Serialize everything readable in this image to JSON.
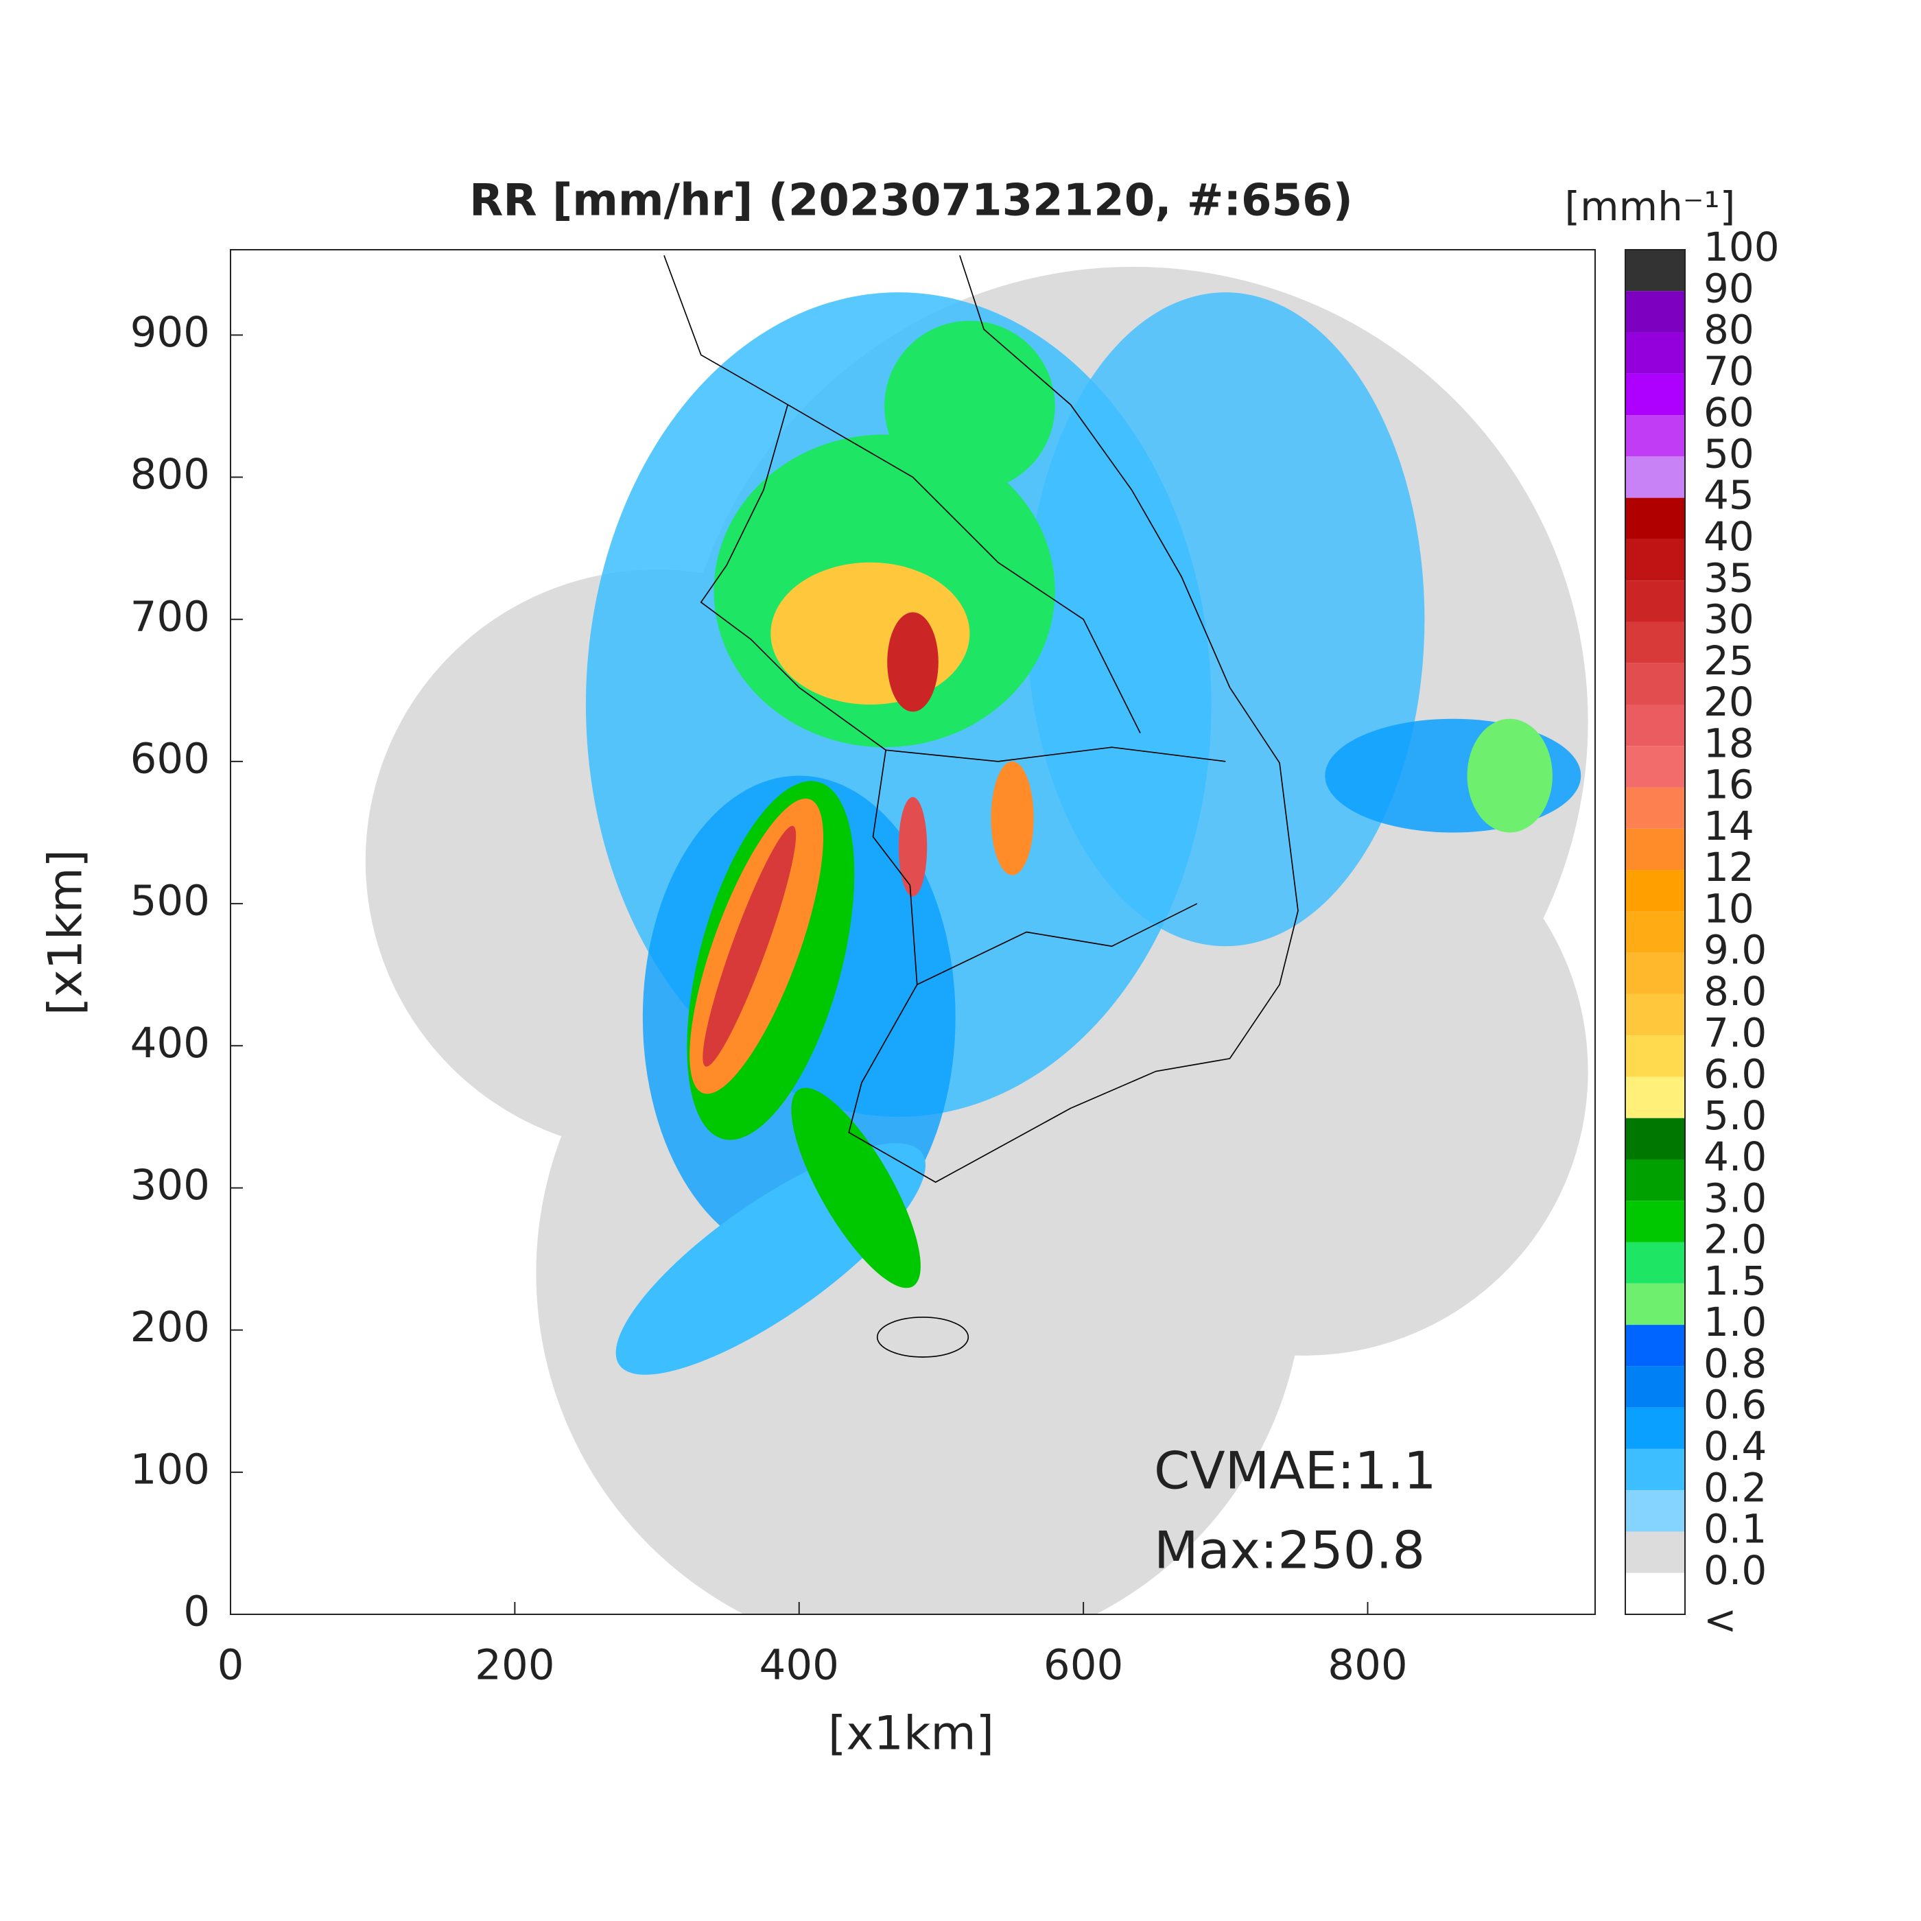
{
  "map": {
    "title": "RR [mm/hr] (202307132120, #:656)",
    "xlabel": "[x1km]",
    "ylabel": "[x1km]",
    "xlim": [
      0,
      960
    ],
    "ylim": [
      0,
      960
    ],
    "xticks": [
      0,
      200,
      400,
      600,
      800
    ],
    "yticks": [
      0,
      100,
      200,
      300,
      400,
      500,
      600,
      700,
      800,
      900
    ],
    "annotations": [
      "CVMAE:1.1",
      "Max:250.8"
    ],
    "colorbar": {
      "label": "[mmh⁻¹]",
      "ticks": [
        100,
        90,
        80,
        70,
        60,
        50,
        45,
        40,
        35,
        30,
        25,
        20,
        18,
        16,
        14,
        12,
        10,
        {
          "value": 9,
          "label": "9.0"
        },
        {
          "value": 8,
          "label": "8.0"
        },
        {
          "value": 7,
          "label": "7.0"
        },
        {
          "value": 6,
          "label": "6.0"
        },
        {
          "value": 5,
          "label": "5.0"
        },
        {
          "value": 4,
          "label": "4.0"
        },
        {
          "value": 3,
          "label": "3.0"
        },
        {
          "value": 2,
          "label": "2.0"
        },
        1.5,
        {
          "value": 1,
          "label": "1.0"
        },
        0.8,
        0.6,
        0.4,
        0.2,
        0.1,
        {
          "value": 0,
          "label": "0.0"
        }
      ],
      "under_label": "<",
      "colors": [
        "#333333",
        "#7d00c0",
        "#9300dc",
        "#ad00ff",
        "#c03cf5",
        "#c882f5",
        "#b00000",
        "#c01414",
        "#cc2525",
        "#d83a3a",
        "#e24d50",
        "#eb5c60",
        "#f26c6c",
        "#fc8050",
        "#ff8c28",
        "#ffa000",
        "#ffac14",
        "#ffb82c",
        "#ffc83c",
        "#ffd94e",
        "#fff07a",
        "#007800",
        "#00a000",
        "#00c800",
        "#1ee664",
        "#6ef06e",
        "#0064ff",
        "#0080f5",
        "#0aa0ff",
        "#3cbeff",
        "#84d4ff",
        "#dcdcdc",
        "#ffffff"
      ]
    }
  }
}
